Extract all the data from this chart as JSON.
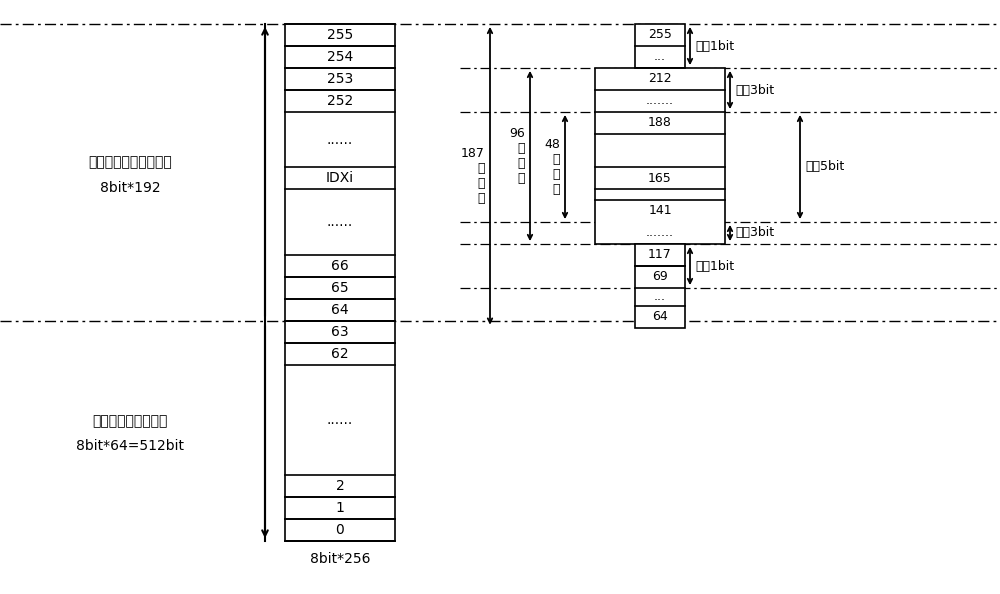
{
  "bg_color": "#ffffff",
  "fig_w": 10.0,
  "fig_h": 5.94,
  "left_label1_line1": "三维波形映射存储区：",
  "left_label1_line2": "8bit*192",
  "left_label2_line1": "用于位扩展存储区：",
  "left_label2_line2": "8bit*64=512bit",
  "bottom_label": "8bit*256",
  "main_rows_top_labels": [
    "255",
    "254",
    "253",
    "252",
    "......",
    "IDXi",
    "......",
    "66",
    "65",
    "64"
  ],
  "main_rows_bot_labels": [
    "63",
    "62",
    "......",
    "2",
    "1",
    "0"
  ],
  "rc_labels": [
    "255",
    "...",
    "212",
    ".......",
    "188",
    "165",
    "141",
    ".......",
    "117",
    "69",
    "...",
    "64"
  ],
  "expand_labels": [
    "扩展1bit",
    "扩展3bit",
    "扩展5bit",
    "扩展3bit",
    "扩展1bit"
  ],
  "dim_labels": [
    "187\n个\n单\n元",
    "96\n个\n单\n元",
    "48\n个\n单\n元"
  ]
}
